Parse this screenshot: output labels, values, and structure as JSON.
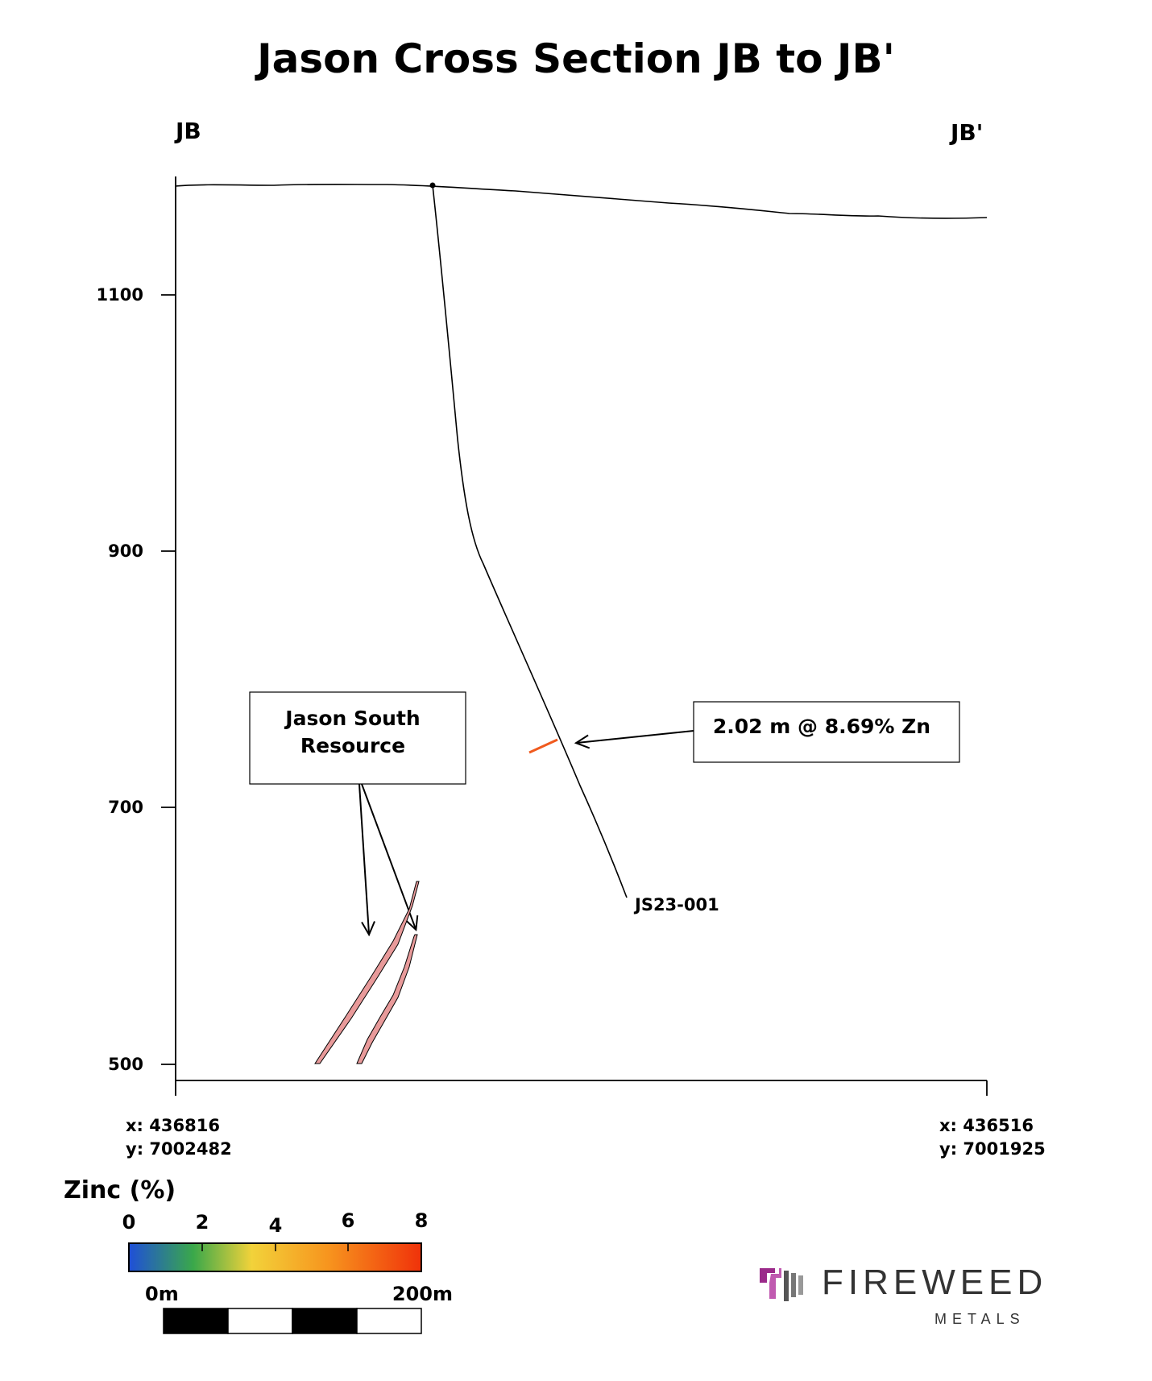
{
  "title": "Jason Cross Section JB to JB'",
  "section_ends": {
    "left": "JB",
    "right": "JB'"
  },
  "y_axis": {
    "ticks": [
      "1100",
      "900",
      "700",
      "500"
    ]
  },
  "coords": {
    "left": {
      "x": "x: 436816",
      "y": "y: 7002482"
    },
    "right": {
      "x": "x: 436516",
      "y": "y: 7001925"
    }
  },
  "drillhole": {
    "name": "JS23-001"
  },
  "callouts": {
    "intercept": "2.02 m @ 8.69% Zn",
    "resource_line1": "Jason South",
    "resource_line2": "Resource"
  },
  "legend": {
    "title": "Zinc (%)",
    "ticks": [
      "0",
      "2",
      "4",
      "6",
      "8"
    ],
    "colors": [
      "#1f4fd8",
      "#3aa84a",
      "#f2d23a",
      "#f7951e",
      "#f0320a"
    ]
  },
  "scale_bar": {
    "start": "0m",
    "end": "200m"
  },
  "logo": {
    "name": "FIREWEED",
    "sub": "METALS"
  },
  "colors": {
    "intercept": "#f05a1e",
    "resource_fill": "#e89a9a",
    "logo_accent": "#9b2a8a"
  }
}
